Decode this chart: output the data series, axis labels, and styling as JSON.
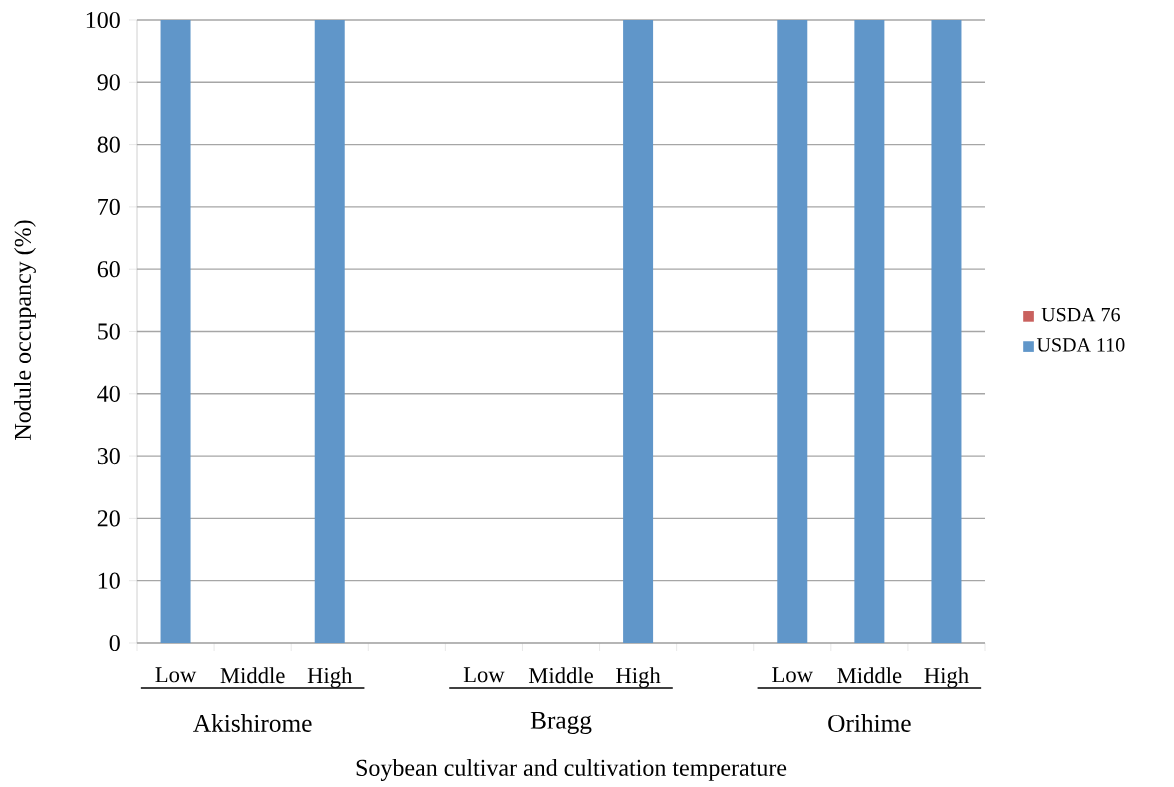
{
  "chart_data": {
    "type": "bar",
    "stacked": true,
    "categories": [
      "Low",
      "Middle",
      "High",
      null,
      "Low",
      "Middle",
      "High",
      null,
      "Low",
      "Middle",
      "High"
    ],
    "series": [
      {
        "name": "USDA 76",
        "color": "#c9615e",
        "values": [
          0,
          0,
          0,
          null,
          0,
          0,
          0,
          null,
          0,
          0,
          0
        ]
      },
      {
        "name": "USDA 110",
        "color": "#6096c9",
        "values": [
          100,
          0,
          100,
          null,
          0,
          0,
          100,
          null,
          100,
          100,
          100
        ]
      }
    ],
    "xlabel": "Soybean cultivar and cultivation temperature",
    "ylabel": "Nodule occupancy (%)",
    "annotations": [
      "Akishirome",
      "Bragg",
      "Orihime"
    ],
    "ylim": [
      0,
      100
    ],
    "yticks": [
      0,
      10,
      20,
      30,
      40,
      50,
      60,
      70,
      80,
      90,
      100
    ],
    "grid": "y",
    "legend": "right"
  }
}
